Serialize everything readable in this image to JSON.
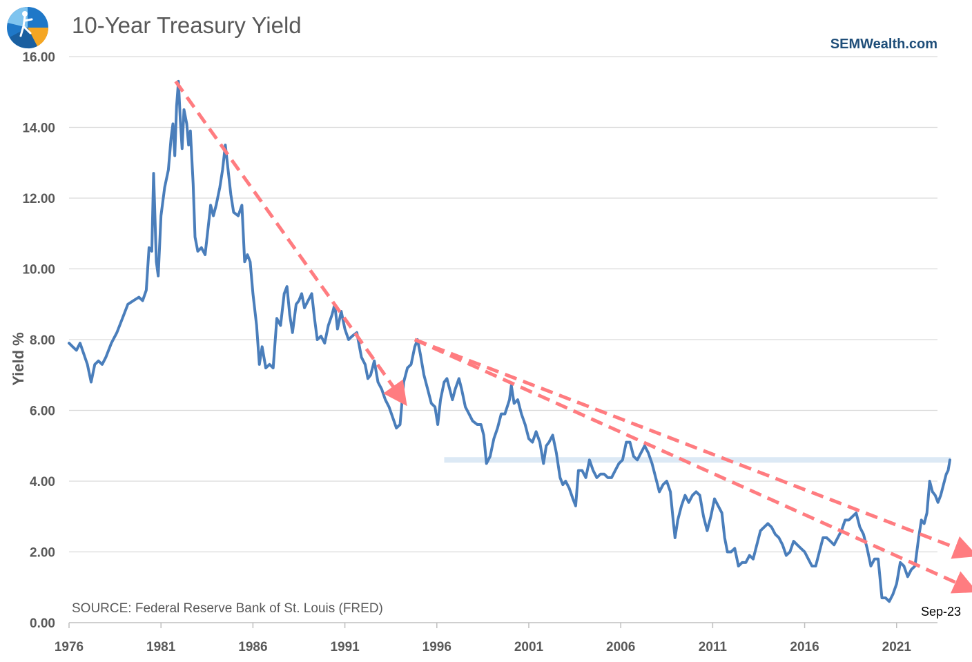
{
  "chart_data": {
    "type": "line",
    "title": "10-Year Treasury Yield",
    "brand": "SEMWealth.com",
    "ylabel": "Yield %",
    "source": "SOURCE:  Federal Reserve Bank of St. Louis (FRED)",
    "end_label": "Sep-23",
    "xlim": [
      1976,
      2024.8
    ],
    "ylim": [
      0,
      16
    ],
    "y_ticks": [
      "0.00",
      "2.00",
      "4.00",
      "6.00",
      "8.00",
      "10.00",
      "12.00",
      "14.00",
      "16.00"
    ],
    "x_ticks": [
      "1976",
      "1981",
      "1986",
      "1991",
      "1996",
      "2001",
      "2006",
      "2011",
      "2016",
      "2021"
    ],
    "grid": true,
    "colors": {
      "series": "#4a7ebb",
      "trend": "#ff7c80",
      "resistance": "#dce9f5",
      "grid": "#d9d9d9"
    },
    "series": [
      {
        "name": "10-Year Treasury Yield",
        "points": [
          [
            1976.0,
            7.9
          ],
          [
            1976.2,
            7.8
          ],
          [
            1976.4,
            7.7
          ],
          [
            1976.6,
            7.9
          ],
          [
            1976.8,
            7.6
          ],
          [
            1977.0,
            7.3
          ],
          [
            1977.2,
            6.8
          ],
          [
            1977.4,
            7.3
          ],
          [
            1977.6,
            7.4
          ],
          [
            1977.8,
            7.3
          ],
          [
            1978.0,
            7.5
          ],
          [
            1978.3,
            7.9
          ],
          [
            1978.6,
            8.2
          ],
          [
            1978.9,
            8.6
          ],
          [
            1979.2,
            9.0
          ],
          [
            1979.5,
            9.1
          ],
          [
            1979.8,
            9.2
          ],
          [
            1980.0,
            9.1
          ],
          [
            1980.2,
            9.4
          ],
          [
            1980.35,
            10.6
          ],
          [
            1980.5,
            10.5
          ],
          [
            1980.6,
            12.7
          ],
          [
            1980.75,
            10.2
          ],
          [
            1980.85,
            9.8
          ],
          [
            1981.0,
            11.5
          ],
          [
            1981.2,
            12.3
          ],
          [
            1981.4,
            12.8
          ],
          [
            1981.55,
            13.7
          ],
          [
            1981.65,
            14.1
          ],
          [
            1981.75,
            13.2
          ],
          [
            1981.85,
            14.6
          ],
          [
            1981.95,
            15.3
          ],
          [
            1982.05,
            14.2
          ],
          [
            1982.15,
            13.4
          ],
          [
            1982.25,
            14.5
          ],
          [
            1982.4,
            14.1
          ],
          [
            1982.5,
            13.5
          ],
          [
            1982.6,
            13.9
          ],
          [
            1982.75,
            12.4
          ],
          [
            1982.85,
            10.9
          ],
          [
            1983.0,
            10.5
          ],
          [
            1983.2,
            10.6
          ],
          [
            1983.4,
            10.4
          ],
          [
            1983.7,
            11.8
          ],
          [
            1983.85,
            11.5
          ],
          [
            1984.0,
            11.8
          ],
          [
            1984.2,
            12.3
          ],
          [
            1984.35,
            12.8
          ],
          [
            1984.5,
            13.5
          ],
          [
            1984.65,
            12.8
          ],
          [
            1984.8,
            12.1
          ],
          [
            1984.95,
            11.6
          ],
          [
            1985.2,
            11.5
          ],
          [
            1985.4,
            11.8
          ],
          [
            1985.55,
            10.2
          ],
          [
            1985.7,
            10.4
          ],
          [
            1985.85,
            10.2
          ],
          [
            1986.0,
            9.3
          ],
          [
            1986.2,
            8.4
          ],
          [
            1986.35,
            7.3
          ],
          [
            1986.5,
            7.8
          ],
          [
            1986.7,
            7.2
          ],
          [
            1986.9,
            7.3
          ],
          [
            1987.1,
            7.2
          ],
          [
            1987.3,
            8.6
          ],
          [
            1987.5,
            8.4
          ],
          [
            1987.7,
            9.3
          ],
          [
            1987.85,
            9.5
          ],
          [
            1988.0,
            8.7
          ],
          [
            1988.15,
            8.2
          ],
          [
            1988.35,
            9.0
          ],
          [
            1988.5,
            9.1
          ],
          [
            1988.65,
            9.3
          ],
          [
            1988.8,
            8.9
          ],
          [
            1989.0,
            9.1
          ],
          [
            1989.2,
            9.3
          ],
          [
            1989.35,
            8.6
          ],
          [
            1989.5,
            8.0
          ],
          [
            1989.7,
            8.1
          ],
          [
            1989.9,
            7.9
          ],
          [
            1990.1,
            8.4
          ],
          [
            1990.3,
            8.7
          ],
          [
            1990.45,
            9.0
          ],
          [
            1990.6,
            8.3
          ],
          [
            1990.8,
            8.8
          ],
          [
            1991.0,
            8.3
          ],
          [
            1991.2,
            8.0
          ],
          [
            1991.4,
            8.1
          ],
          [
            1991.65,
            8.2
          ],
          [
            1991.9,
            7.5
          ],
          [
            1992.1,
            7.3
          ],
          [
            1992.25,
            6.9
          ],
          [
            1992.4,
            7.0
          ],
          [
            1992.6,
            7.4
          ],
          [
            1992.8,
            6.8
          ],
          [
            1993.0,
            6.6
          ],
          [
            1993.2,
            6.3
          ],
          [
            1993.4,
            6.1
          ],
          [
            1993.6,
            5.8
          ],
          [
            1993.8,
            5.5
          ],
          [
            1994.0,
            5.6
          ],
          [
            1994.2,
            6.8
          ],
          [
            1994.4,
            7.2
          ],
          [
            1994.6,
            7.3
          ],
          [
            1994.8,
            7.8
          ],
          [
            1994.95,
            8.0
          ],
          [
            1995.1,
            7.6
          ],
          [
            1995.3,
            7.0
          ],
          [
            1995.5,
            6.6
          ],
          [
            1995.7,
            6.2
          ],
          [
            1995.9,
            6.1
          ],
          [
            1996.05,
            5.6
          ],
          [
            1996.2,
            6.3
          ],
          [
            1996.4,
            6.8
          ],
          [
            1996.55,
            6.9
          ],
          [
            1996.7,
            6.6
          ],
          [
            1996.85,
            6.3
          ],
          [
            1997.0,
            6.6
          ],
          [
            1997.2,
            6.9
          ],
          [
            1997.35,
            6.6
          ],
          [
            1997.55,
            6.1
          ],
          [
            1997.75,
            5.9
          ],
          [
            1997.95,
            5.7
          ],
          [
            1998.2,
            5.6
          ],
          [
            1998.4,
            5.6
          ],
          [
            1998.55,
            5.3
          ],
          [
            1998.7,
            4.5
          ],
          [
            1998.9,
            4.7
          ],
          [
            1999.1,
            5.2
          ],
          [
            1999.3,
            5.5
          ],
          [
            1999.5,
            5.9
          ],
          [
            1999.7,
            5.9
          ],
          [
            1999.95,
            6.3
          ],
          [
            2000.05,
            6.7
          ],
          [
            2000.2,
            6.2
          ],
          [
            2000.4,
            6.3
          ],
          [
            2000.6,
            5.9
          ],
          [
            2000.8,
            5.6
          ],
          [
            2001.0,
            5.2
          ],
          [
            2001.2,
            5.1
          ],
          [
            2001.4,
            5.4
          ],
          [
            2001.6,
            5.1
          ],
          [
            2001.8,
            4.5
          ],
          [
            2001.95,
            5.0
          ],
          [
            2002.1,
            5.1
          ],
          [
            2002.3,
            5.3
          ],
          [
            2002.5,
            4.8
          ],
          [
            2002.7,
            4.1
          ],
          [
            2002.85,
            3.9
          ],
          [
            2003.0,
            4.0
          ],
          [
            2003.2,
            3.8
          ],
          [
            2003.4,
            3.5
          ],
          [
            2003.55,
            3.3
          ],
          [
            2003.7,
            4.3
          ],
          [
            2003.9,
            4.3
          ],
          [
            2004.1,
            4.1
          ],
          [
            2004.3,
            4.6
          ],
          [
            2004.5,
            4.3
          ],
          [
            2004.7,
            4.1
          ],
          [
            2004.9,
            4.2
          ],
          [
            2005.1,
            4.2
          ],
          [
            2005.3,
            4.1
          ],
          [
            2005.5,
            4.1
          ],
          [
            2005.7,
            4.3
          ],
          [
            2005.9,
            4.5
          ],
          [
            2006.1,
            4.6
          ],
          [
            2006.3,
            5.1
          ],
          [
            2006.5,
            5.1
          ],
          [
            2006.7,
            4.7
          ],
          [
            2006.9,
            4.6
          ],
          [
            2007.1,
            4.8
          ],
          [
            2007.3,
            5.0
          ],
          [
            2007.5,
            4.8
          ],
          [
            2007.7,
            4.5
          ],
          [
            2007.9,
            4.1
          ],
          [
            2008.1,
            3.7
          ],
          [
            2008.3,
            3.9
          ],
          [
            2008.5,
            4.0
          ],
          [
            2008.7,
            3.7
          ],
          [
            2008.85,
            2.9
          ],
          [
            2008.95,
            2.4
          ],
          [
            2009.1,
            2.9
          ],
          [
            2009.3,
            3.3
          ],
          [
            2009.5,
            3.6
          ],
          [
            2009.7,
            3.4
          ],
          [
            2009.9,
            3.6
          ],
          [
            2010.1,
            3.7
          ],
          [
            2010.3,
            3.6
          ],
          [
            2010.5,
            3.0
          ],
          [
            2010.7,
            2.6
          ],
          [
            2010.9,
            3.0
          ],
          [
            2011.1,
            3.5
          ],
          [
            2011.3,
            3.3
          ],
          [
            2011.5,
            3.1
          ],
          [
            2011.65,
            2.4
          ],
          [
            2011.8,
            2.0
          ],
          [
            2012.0,
            2.0
          ],
          [
            2012.2,
            2.1
          ],
          [
            2012.4,
            1.6
          ],
          [
            2012.6,
            1.7
          ],
          [
            2012.8,
            1.7
          ],
          [
            2013.0,
            1.9
          ],
          [
            2013.2,
            1.8
          ],
          [
            2013.4,
            2.2
          ],
          [
            2013.6,
            2.6
          ],
          [
            2013.8,
            2.7
          ],
          [
            2014.0,
            2.8
          ],
          [
            2014.2,
            2.7
          ],
          [
            2014.4,
            2.5
          ],
          [
            2014.6,
            2.4
          ],
          [
            2014.8,
            2.2
          ],
          [
            2015.0,
            1.9
          ],
          [
            2015.2,
            2.0
          ],
          [
            2015.4,
            2.3
          ],
          [
            2015.6,
            2.2
          ],
          [
            2015.8,
            2.1
          ],
          [
            2016.0,
            2.0
          ],
          [
            2016.2,
            1.8
          ],
          [
            2016.4,
            1.6
          ],
          [
            2016.6,
            1.6
          ],
          [
            2016.8,
            2.0
          ],
          [
            2017.0,
            2.4
          ],
          [
            2017.2,
            2.4
          ],
          [
            2017.4,
            2.3
          ],
          [
            2017.6,
            2.2
          ],
          [
            2017.8,
            2.4
          ],
          [
            2018.0,
            2.6
          ],
          [
            2018.2,
            2.9
          ],
          [
            2018.4,
            2.9
          ],
          [
            2018.6,
            3.0
          ],
          [
            2018.8,
            3.1
          ],
          [
            2019.0,
            2.7
          ],
          [
            2019.2,
            2.5
          ],
          [
            2019.4,
            2.1
          ],
          [
            2019.6,
            1.6
          ],
          [
            2019.8,
            1.8
          ],
          [
            2020.0,
            1.8
          ],
          [
            2020.2,
            0.7
          ],
          [
            2020.4,
            0.7
          ],
          [
            2020.6,
            0.6
          ],
          [
            2020.8,
            0.8
          ],
          [
            2021.0,
            1.1
          ],
          [
            2021.2,
            1.7
          ],
          [
            2021.4,
            1.6
          ],
          [
            2021.6,
            1.3
          ],
          [
            2021.8,
            1.5
          ],
          [
            2022.0,
            1.6
          ],
          [
            2022.2,
            2.4
          ],
          [
            2022.35,
            2.9
          ],
          [
            2022.5,
            2.8
          ],
          [
            2022.65,
            3.1
          ],
          [
            2022.8,
            4.0
          ],
          [
            2022.95,
            3.7
          ],
          [
            2023.1,
            3.6
          ],
          [
            2023.25,
            3.4
          ],
          [
            2023.4,
            3.6
          ],
          [
            2023.55,
            3.9
          ],
          [
            2023.7,
            4.2
          ],
          [
            2023.8,
            4.3
          ],
          [
            2023.9,
            4.6
          ]
        ]
      }
    ],
    "annotations": {
      "trend_lines": [
        {
          "x": [
            1981.8,
            1994.0
          ],
          "y": [
            15.3,
            6.4
          ]
        },
        {
          "x": [
            1994.8,
            2024.8
          ],
          "y": [
            8.0,
            2.0
          ]
        },
        {
          "x": [
            1994.8,
            2024.8
          ],
          "y": [
            8.0,
            1.0
          ]
        }
      ],
      "resistance_level": {
        "y": 4.6,
        "x": [
          1996.4,
          2023.95
        ]
      }
    }
  }
}
